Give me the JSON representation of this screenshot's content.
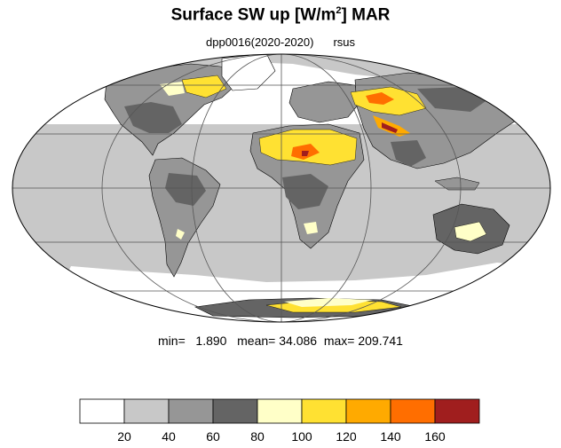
{
  "title": {
    "main": "Surface SW up [W/m",
    "superscript": "2",
    "suffix": "]  MAR"
  },
  "subtitle": {
    "experiment": "dpp0016(2020-2020)",
    "variable": "rsus"
  },
  "stats": {
    "min_label": "min=",
    "min": "1.890",
    "mean_label": "mean=",
    "mean": "34.086",
    "max_label": "max=",
    "max": "209.741"
  },
  "map": {
    "projection": "mollweide",
    "ocean_color": "#c8c8c8",
    "land_base_color": "#969696",
    "coastline_color": "#000000",
    "graticule_color": "#555555"
  },
  "colorbar": {
    "colors": [
      "#ffffff",
      "#c8c8c8",
      "#969696",
      "#646464",
      "#ffffc8",
      "#ffe132",
      "#ffaa00",
      "#ff6e00",
      "#a01e1e"
    ],
    "tick_labels": [
      "20",
      "40",
      "60",
      "80",
      "100",
      "120",
      "140",
      "160"
    ]
  }
}
